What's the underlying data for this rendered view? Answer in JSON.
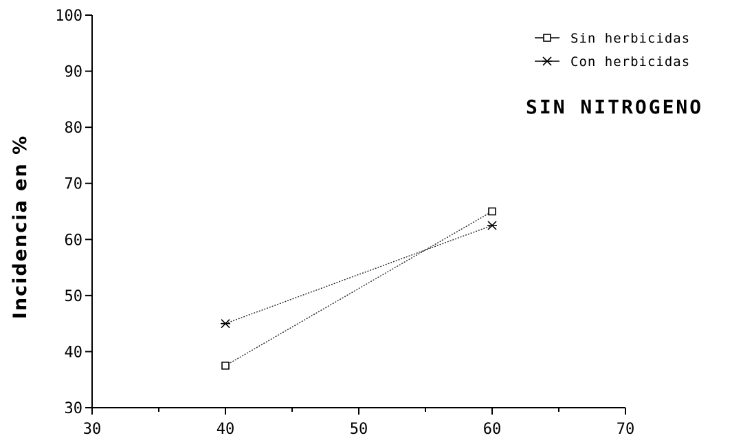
{
  "chart_data": {
    "type": "line",
    "title": "",
    "annotation": "SIN NITROGENO",
    "xlabel": "",
    "ylabel": "Incidencia en %",
    "xlim": [
      30,
      70
    ],
    "ylim": [
      30,
      100
    ],
    "xticks": [
      30,
      40,
      50,
      60,
      70
    ],
    "yticks": [
      30,
      40,
      50,
      60,
      70,
      80,
      90,
      100
    ],
    "grid": false,
    "legend_position": "top-right",
    "series": [
      {
        "name": "Sin herbicidas",
        "marker": "square",
        "x": [
          40,
          60
        ],
        "y": [
          37.5,
          65
        ]
      },
      {
        "name": "Con herbicidas",
        "marker": "asterisk",
        "x": [
          40,
          60
        ],
        "y": [
          45,
          62.5
        ]
      }
    ]
  }
}
